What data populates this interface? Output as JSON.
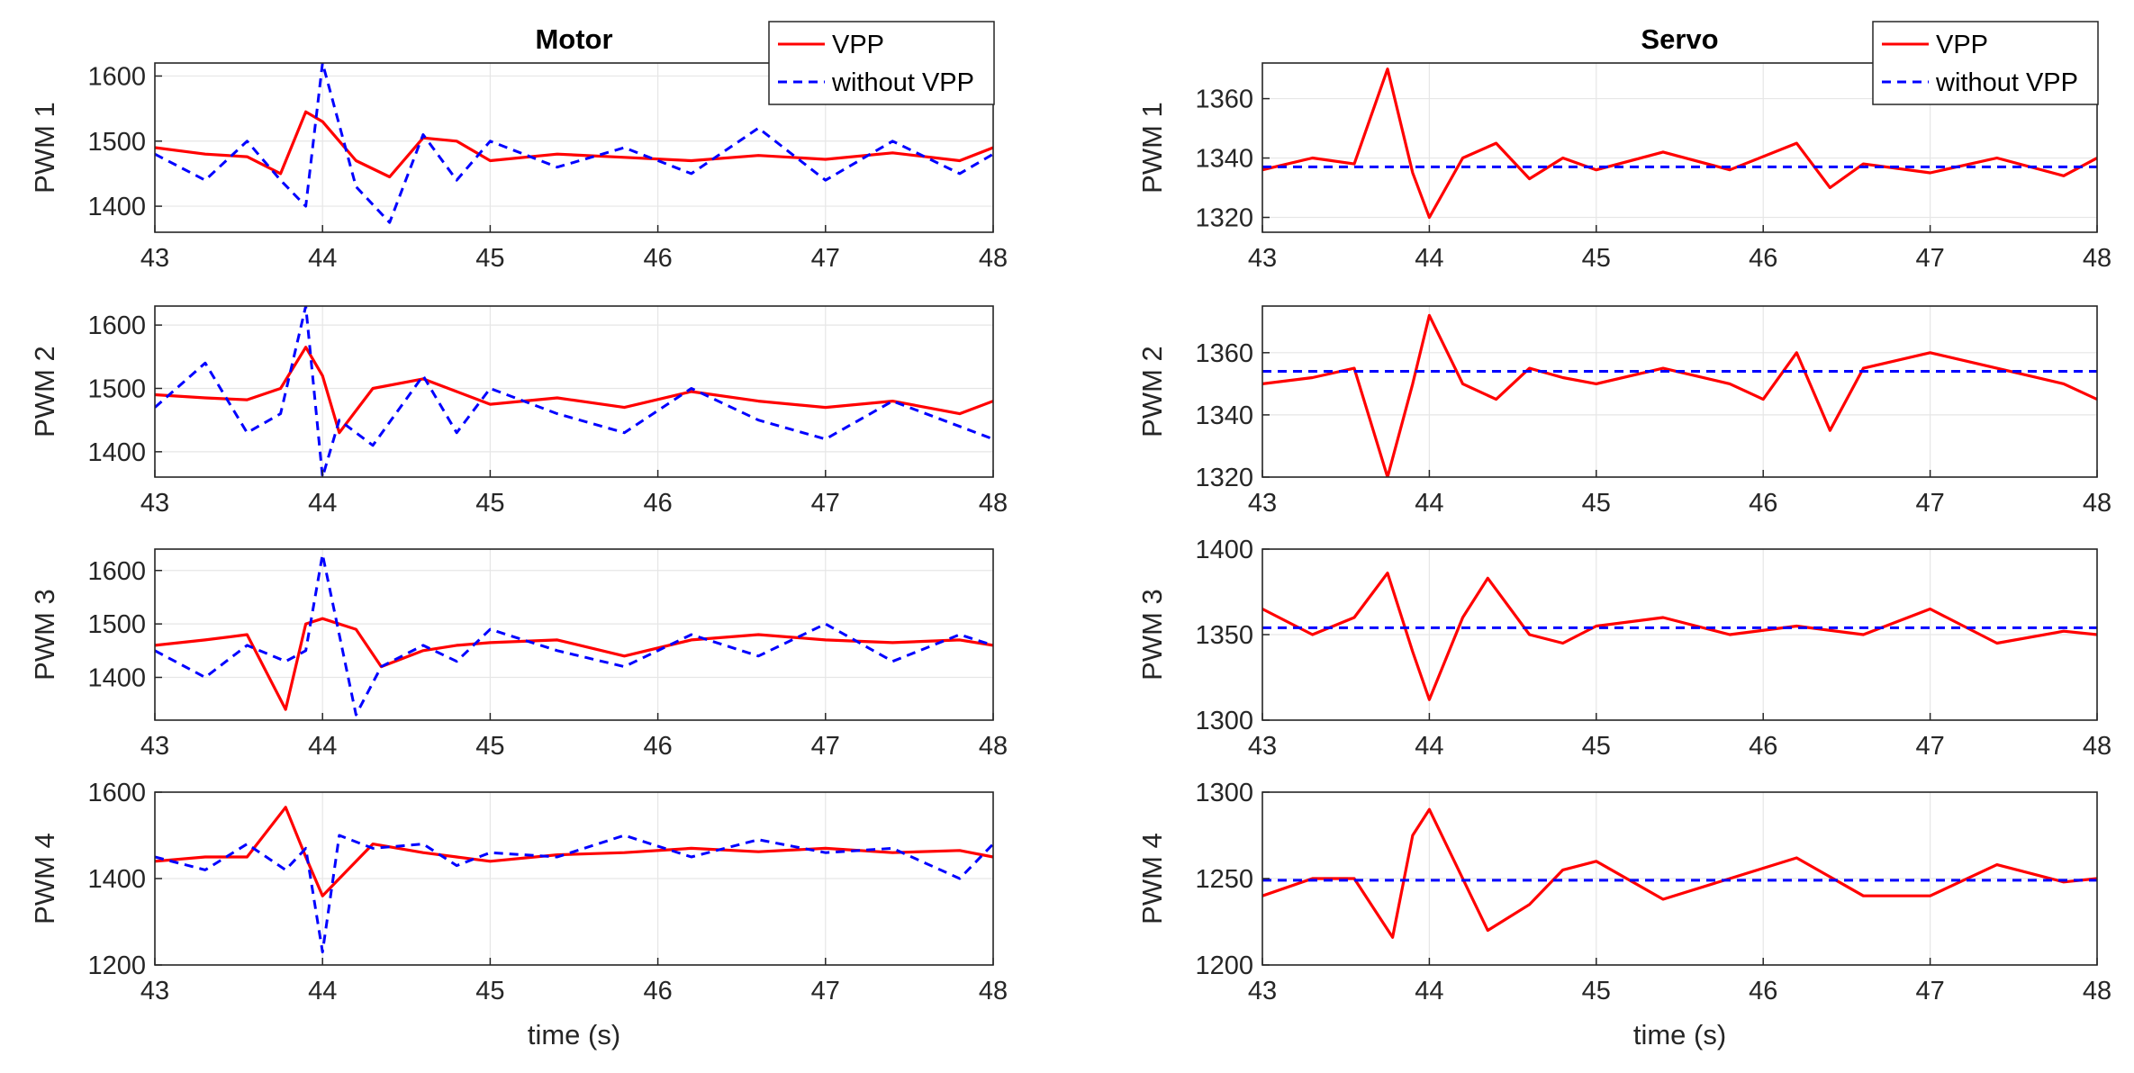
{
  "chart_data": [
    {
      "id": "motor-pwm1",
      "column": "Motor",
      "type": "line",
      "title": "Motor",
      "ylabel": "PWM 1",
      "xlabel": "",
      "xlim": [
        43,
        48
      ],
      "ylim": [
        1360,
        1620
      ],
      "xticks": [
        43,
        44,
        45,
        46,
        47,
        48
      ],
      "yticks": [
        1400,
        1500,
        1600
      ],
      "x": [
        43,
        43.3,
        43.55,
        43.75,
        43.9,
        44.0,
        44.2,
        44.4,
        44.6,
        44.8,
        45,
        45.4,
        45.8,
        46.2,
        46.6,
        47,
        47.4,
        47.8,
        48
      ],
      "series": [
        {
          "name": "VPP",
          "values": [
            1490,
            1480,
            1476,
            1450,
            1545,
            1530,
            1470,
            1445,
            1505,
            1500,
            1470,
            1480,
            1475,
            1470,
            1478,
            1472,
            1482,
            1470,
            1490
          ]
        },
        {
          "name": "without VPP",
          "values": [
            1480,
            1440,
            1500,
            1440,
            1400,
            1620,
            1430,
            1375,
            1510,
            1440,
            1500,
            1460,
            1490,
            1450,
            1520,
            1440,
            1500,
            1450,
            1480
          ]
        }
      ],
      "legend": {
        "entries": [
          "VPP",
          "without VPP"
        ],
        "location": "top-right"
      }
    },
    {
      "id": "motor-pwm2",
      "column": "Motor",
      "type": "line",
      "ylabel": "PWM 2",
      "xlabel": "",
      "xlim": [
        43,
        48
      ],
      "ylim": [
        1360,
        1630
      ],
      "xticks": [
        43,
        44,
        45,
        46,
        47,
        48
      ],
      "yticks": [
        1400,
        1500,
        1600
      ],
      "x": [
        43,
        43.3,
        43.55,
        43.75,
        43.9,
        44.0,
        44.1,
        44.3,
        44.6,
        44.8,
        45,
        45.4,
        45.8,
        46.2,
        46.6,
        47,
        47.4,
        47.8,
        48
      ],
      "series": [
        {
          "name": "VPP",
          "values": [
            1490,
            1485,
            1482,
            1500,
            1565,
            1520,
            1430,
            1500,
            1515,
            1495,
            1475,
            1485,
            1470,
            1495,
            1480,
            1470,
            1480,
            1460,
            1480
          ]
        },
        {
          "name": "without VPP",
          "values": [
            1470,
            1540,
            1430,
            1460,
            1630,
            1360,
            1450,
            1410,
            1520,
            1430,
            1500,
            1460,
            1430,
            1500,
            1450,
            1420,
            1480,
            1440,
            1420
          ]
        }
      ]
    },
    {
      "id": "motor-pwm3",
      "column": "Motor",
      "type": "line",
      "ylabel": "PWM 3",
      "xlabel": "",
      "xlim": [
        43,
        48
      ],
      "ylim": [
        1320,
        1640
      ],
      "xticks": [
        43,
        44,
        45,
        46,
        47,
        48
      ],
      "yticks": [
        1400,
        1500,
        1600
      ],
      "x": [
        43,
        43.3,
        43.55,
        43.78,
        43.9,
        44.0,
        44.2,
        44.35,
        44.6,
        44.8,
        45,
        45.4,
        45.8,
        46.2,
        46.6,
        47,
        47.4,
        47.8,
        48
      ],
      "series": [
        {
          "name": "VPP",
          "values": [
            1460,
            1470,
            1480,
            1340,
            1500,
            1510,
            1490,
            1420,
            1450,
            1460,
            1465,
            1470,
            1440,
            1470,
            1480,
            1470,
            1465,
            1470,
            1460
          ]
        },
        {
          "name": "without VPP",
          "values": [
            1450,
            1400,
            1460,
            1430,
            1450,
            1630,
            1330,
            1420,
            1460,
            1430,
            1490,
            1450,
            1420,
            1480,
            1440,
            1500,
            1430,
            1480,
            1460
          ]
        }
      ]
    },
    {
      "id": "motor-pwm4",
      "column": "Motor",
      "type": "line",
      "ylabel": "PWM 4",
      "xlabel": "time (s)",
      "xlim": [
        43,
        48
      ],
      "ylim": [
        1200,
        1600
      ],
      "xticks": [
        43,
        44,
        45,
        46,
        47,
        48
      ],
      "yticks": [
        1200,
        1400,
        1600
      ],
      "x": [
        43,
        43.3,
        43.55,
        43.78,
        43.9,
        44.0,
        44.1,
        44.3,
        44.6,
        44.8,
        45,
        45.4,
        45.8,
        46.2,
        46.6,
        47,
        47.4,
        47.8,
        48
      ],
      "series": [
        {
          "name": "VPP",
          "values": [
            1440,
            1450,
            1450,
            1565,
            1450,
            1360,
            1400,
            1480,
            1460,
            1450,
            1440,
            1455,
            1460,
            1470,
            1462,
            1470,
            1460,
            1465,
            1450
          ]
        },
        {
          "name": "without VPP",
          "values": [
            1450,
            1420,
            1480,
            1420,
            1470,
            1230,
            1500,
            1470,
            1480,
            1430,
            1460,
            1450,
            1500,
            1450,
            1490,
            1460,
            1470,
            1400,
            1480
          ]
        }
      ]
    },
    {
      "id": "servo-pwm1",
      "column": "Servo",
      "type": "line",
      "title": "Servo",
      "ylabel": "PWM 1",
      "xlabel": "",
      "xlim": [
        43,
        48
      ],
      "ylim": [
        1315,
        1372
      ],
      "xticks": [
        43,
        44,
        45,
        46,
        47,
        48
      ],
      "yticks": [
        1320,
        1340,
        1360
      ],
      "x": [
        43,
        43.3,
        43.55,
        43.75,
        43.9,
        44.0,
        44.2,
        44.4,
        44.6,
        44.8,
        45,
        45.4,
        45.8,
        46.2,
        46.4,
        46.6,
        47,
        47.4,
        47.8,
        48
      ],
      "series": [
        {
          "name": "VPP",
          "values": [
            1336,
            1340,
            1338,
            1370,
            1335,
            1320,
            1340,
            1345,
            1333,
            1340,
            1336,
            1342,
            1336,
            1345,
            1330,
            1338,
            1335,
            1340,
            1334,
            1340
          ]
        },
        {
          "name": "without VPP",
          "values": [
            1337,
            1337,
            1337,
            1337,
            1337,
            1337,
            1337,
            1337,
            1337,
            1337,
            1337,
            1337,
            1337,
            1337,
            1337,
            1337,
            1337,
            1337,
            1337,
            1337
          ]
        }
      ],
      "legend": {
        "entries": [
          "VPP",
          "without VPP"
        ],
        "location": "top-right"
      }
    },
    {
      "id": "servo-pwm2",
      "column": "Servo",
      "type": "line",
      "ylabel": "PWM 2",
      "xlabel": "",
      "xlim": [
        43,
        48
      ],
      "ylim": [
        1320,
        1375
      ],
      "xticks": [
        43,
        44,
        45,
        46,
        47,
        48
      ],
      "yticks": [
        1320,
        1340,
        1360
      ],
      "x": [
        43,
        43.3,
        43.55,
        43.75,
        43.9,
        44.0,
        44.2,
        44.4,
        44.6,
        44.8,
        45,
        45.4,
        45.8,
        46.0,
        46.2,
        46.4,
        46.6,
        47,
        47.4,
        47.8,
        48
      ],
      "series": [
        {
          "name": "VPP",
          "values": [
            1350,
            1352,
            1355,
            1320,
            1350,
            1372,
            1350,
            1345,
            1355,
            1352,
            1350,
            1355,
            1350,
            1345,
            1360,
            1335,
            1355,
            1360,
            1355,
            1350,
            1345
          ]
        },
        {
          "name": "without VPP",
          "values": [
            1354,
            1354,
            1354,
            1354,
            1354,
            1354,
            1354,
            1354,
            1354,
            1354,
            1354,
            1354,
            1354,
            1354,
            1354,
            1354,
            1354,
            1354,
            1354,
            1354,
            1354
          ]
        }
      ]
    },
    {
      "id": "servo-pwm3",
      "column": "Servo",
      "type": "line",
      "ylabel": "PWM 3",
      "xlabel": "",
      "xlim": [
        43,
        48
      ],
      "ylim": [
        1300,
        1400
      ],
      "xticks": [
        43,
        44,
        45,
        46,
        47,
        48
      ],
      "yticks": [
        1300,
        1350,
        1400
      ],
      "x": [
        43,
        43.3,
        43.55,
        43.75,
        43.9,
        44.0,
        44.2,
        44.35,
        44.6,
        44.8,
        45,
        45.4,
        45.8,
        46.2,
        46.6,
        47,
        47.4,
        47.8,
        48
      ],
      "series": [
        {
          "name": "VPP",
          "values": [
            1365,
            1350,
            1360,
            1386,
            1340,
            1312,
            1360,
            1383,
            1350,
            1345,
            1355,
            1360,
            1350,
            1355,
            1350,
            1365,
            1345,
            1352,
            1350
          ]
        },
        {
          "name": "without VPP",
          "values": [
            1354,
            1354,
            1354,
            1354,
            1354,
            1354,
            1354,
            1354,
            1354,
            1354,
            1354,
            1354,
            1354,
            1354,
            1354,
            1354,
            1354,
            1354,
            1354
          ]
        }
      ]
    },
    {
      "id": "servo-pwm4",
      "column": "Servo",
      "type": "line",
      "ylabel": "PWM 4",
      "xlabel": "time (s)",
      "xlim": [
        43,
        48
      ],
      "ylim": [
        1200,
        1300
      ],
      "xticks": [
        43,
        44,
        45,
        46,
        47,
        48
      ],
      "yticks": [
        1200,
        1250,
        1300
      ],
      "x": [
        43,
        43.3,
        43.55,
        43.78,
        43.9,
        44.0,
        44.15,
        44.35,
        44.6,
        44.8,
        45,
        45.4,
        45.8,
        46.2,
        46.6,
        47,
        47.4,
        47.8,
        48
      ],
      "series": [
        {
          "name": "VPP",
          "values": [
            1240,
            1250,
            1250,
            1216,
            1275,
            1290,
            1260,
            1220,
            1235,
            1255,
            1260,
            1238,
            1250,
            1262,
            1240,
            1240,
            1258,
            1248,
            1250
          ]
        },
        {
          "name": "without VPP",
          "values": [
            1249,
            1249,
            1249,
            1249,
            1249,
            1249,
            1249,
            1249,
            1249,
            1249,
            1249,
            1249,
            1249,
            1249,
            1249,
            1249,
            1249,
            1249,
            1249
          ]
        }
      ]
    }
  ],
  "colors": {
    "vpp": "#ff0000",
    "without_vpp": "#0000ff",
    "axis": "#262626",
    "grid": "#e6e6e6"
  }
}
